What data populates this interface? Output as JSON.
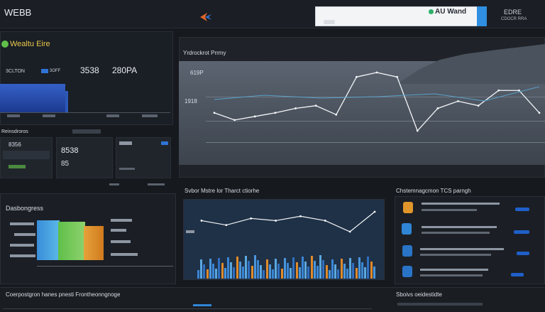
{
  "topbar": {
    "brand": "WEBB",
    "brand_sub": "",
    "nav_line1": "",
    "nav_line2": "",
    "center_line1": "",
    "center_line2": "",
    "search_placeholder": "",
    "search_value": "",
    "right_title": "AU Wand",
    "right_code": "EDRE",
    "right_sub": "CDOCR RRA"
  },
  "left_panel": {
    "logo_text": "Wealtu Eire",
    "stat1": "3CLTON",
    "stat2": "3OFF",
    "stat3": "3538",
    "stat4": "280PA",
    "bottom_label": "Reinsdroros",
    "card_values": [
      "8356",
      "8538",
      "85"
    ]
  },
  "main_chart": {
    "title": "Yrdrockrot Prrmy",
    "y_label_top": "619P",
    "y_label_mid": "1918",
    "y_label_low": "",
    "x_labels": [
      "",
      "",
      "",
      ""
    ]
  },
  "chart_data": [
    {
      "type": "line",
      "title": "Yrdrockrot Prrmy",
      "series": [
        {
          "values": [
            140,
            132,
            136,
            140,
            145,
            148,
            138,
            180,
            185,
            180,
            120,
            145,
            153,
            148,
            165,
            165,
            140
          ]
        }
      ]
    },
    {
      "type": "line",
      "title": "Svbor Mstre lor Tharct ctiorhe",
      "series": [
        {
          "values": [
            70,
            66,
            72,
            70,
            74,
            70,
            60,
            78
          ]
        }
      ]
    }
  ],
  "bottom_left": {
    "title": "Dasbongress"
  },
  "bottom_center": {
    "title": "Svbor Mstre lor Tharct ctiorhe"
  },
  "right_list": {
    "title": "Chstemnagcmon TCS parngh"
  },
  "footer": {
    "left_title": "Coerpostgron hanes pnesti Frontheonngnoge",
    "right_title": "Sboivs oeidestidte"
  },
  "colors": {
    "bg": "#16191e",
    "panel": "#1d2128",
    "accent_blue": "#2f74d6",
    "accent_orange": "#e08a2a",
    "accent_green": "#5fbf4a"
  }
}
